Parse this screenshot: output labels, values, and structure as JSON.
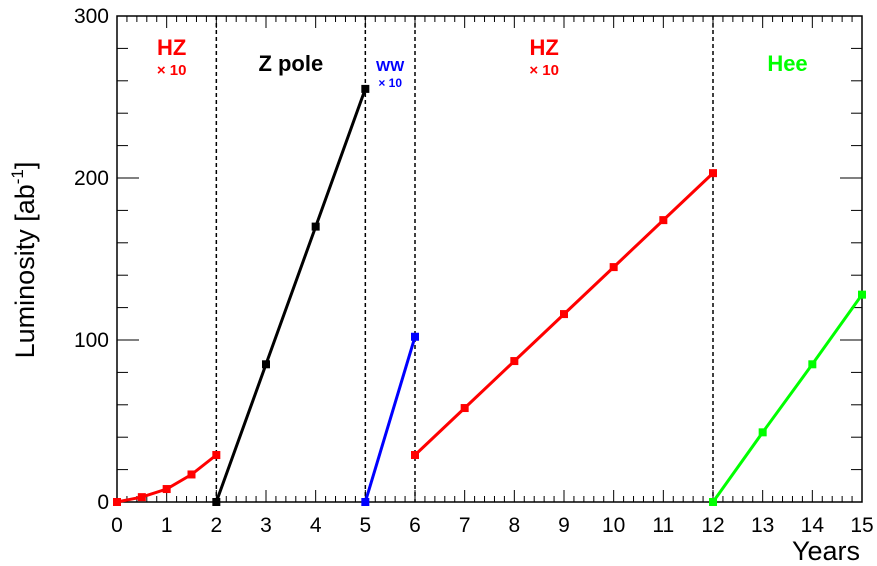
{
  "chart_data": {
    "type": "line",
    "xlabel": "Years",
    "ylabel": "Luminosity [ab",
    "ylabel_sup": "-1",
    "ylabel_close": "]",
    "xlim": [
      0,
      15
    ],
    "ylim": [
      0,
      300
    ],
    "x_ticks": [
      0,
      1,
      2,
      3,
      4,
      5,
      6,
      7,
      8,
      9,
      10,
      11,
      12,
      13,
      14,
      15
    ],
    "y_ticks": [
      0,
      100,
      200,
      300
    ],
    "grid": false,
    "phase_boundaries": [
      2,
      5,
      6,
      12
    ],
    "series": [
      {
        "color": "#ff0000",
        "x": [
          0,
          0.5,
          1,
          1.5,
          2
        ],
        "y": [
          0,
          3,
          8,
          17,
          29
        ]
      },
      {
        "color": "#000000",
        "x": [
          2,
          3,
          4,
          5
        ],
        "y": [
          0,
          85,
          170,
          255
        ]
      },
      {
        "color": "#0000ff",
        "x": [
          5,
          6
        ],
        "y": [
          0,
          102
        ]
      },
      {
        "color": "#ff0000",
        "x": [
          6,
          7,
          8,
          9,
          10,
          11,
          12
        ],
        "y": [
          29,
          58,
          87,
          116,
          145,
          174,
          203
        ]
      },
      {
        "color": "#00ff00",
        "x": [
          12,
          13,
          14,
          15
        ],
        "y": [
          0,
          43,
          85,
          128
        ]
      }
    ],
    "annotations": [
      {
        "text": "HZ",
        "sub": "× 10",
        "color": "#ff0000",
        "x": 1.1,
        "y": 276
      },
      {
        "text": "Z pole",
        "sub": "",
        "color": "#000000",
        "x": 3.5,
        "y": 266
      },
      {
        "text": "WW",
        "sub": "× 10",
        "color": "#0000ff",
        "x": 5.5,
        "y": 266
      },
      {
        "text": "HZ",
        "sub": "× 10",
        "color": "#ff0000",
        "x": 8.6,
        "y": 276
      },
      {
        "text": "Hee",
        "sub": "",
        "color": "#00ff00",
        "x": 13.5,
        "y": 266
      }
    ]
  }
}
